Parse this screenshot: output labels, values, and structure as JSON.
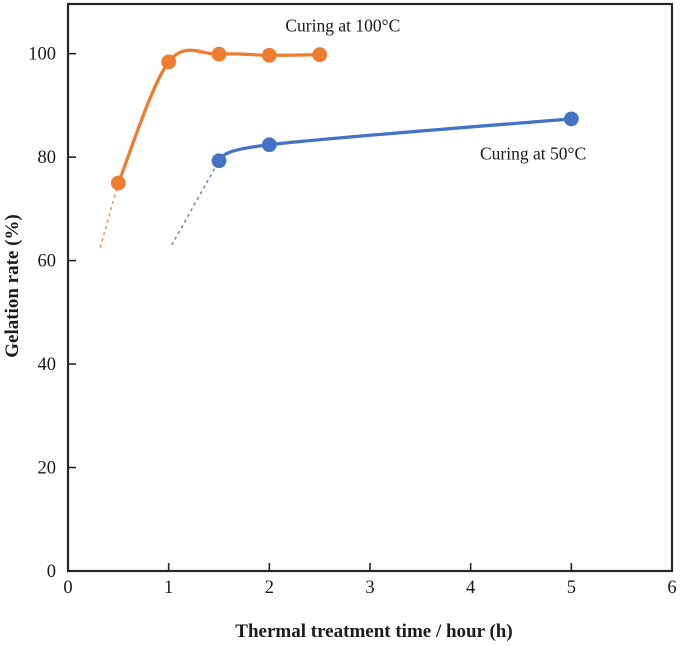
{
  "chart_data": {
    "type": "line",
    "title": "",
    "xlabel": "Thermal treatment time / hour (h)",
    "ylabel": "Gelation rate (%)",
    "xlim": [
      0,
      6
    ],
    "ylim": [
      0,
      109.6
    ],
    "x_ticks": [
      0,
      1,
      2,
      3,
      4,
      5,
      6
    ],
    "y_ticks": [
      0,
      20,
      40,
      60,
      80,
      100
    ],
    "grid": false,
    "legend_position": "inline-annotations",
    "axis_color": "#262626",
    "text_color": "#1a1a1a",
    "series": [
      {
        "name": "Curing at 100°C",
        "color": "#ED7D31",
        "x": [
          0.5,
          1.0,
          1.5,
          2.0,
          2.5
        ],
        "y": [
          75.0,
          98.4,
          99.9,
          99.7,
          99.8
        ],
        "extrapolation": {
          "x": [
            0.32,
            0.5
          ],
          "y": [
            62.5,
            75.0
          ]
        },
        "label": {
          "text": "Curing at 100°C",
          "x": 2.73,
          "y": 105.3
        }
      },
      {
        "name": "Curing at 50°C",
        "color": "#4472C4",
        "x": [
          1.5,
          2.0,
          5.0
        ],
        "y": [
          79.3,
          82.4,
          87.4
        ],
        "extrapolation": {
          "x": [
            1.03,
            1.5
          ],
          "y": [
            63.0,
            79.3
          ]
        },
        "label": {
          "text": "Curing at 50°C",
          "x": 4.62,
          "y": 80.6
        }
      }
    ]
  }
}
